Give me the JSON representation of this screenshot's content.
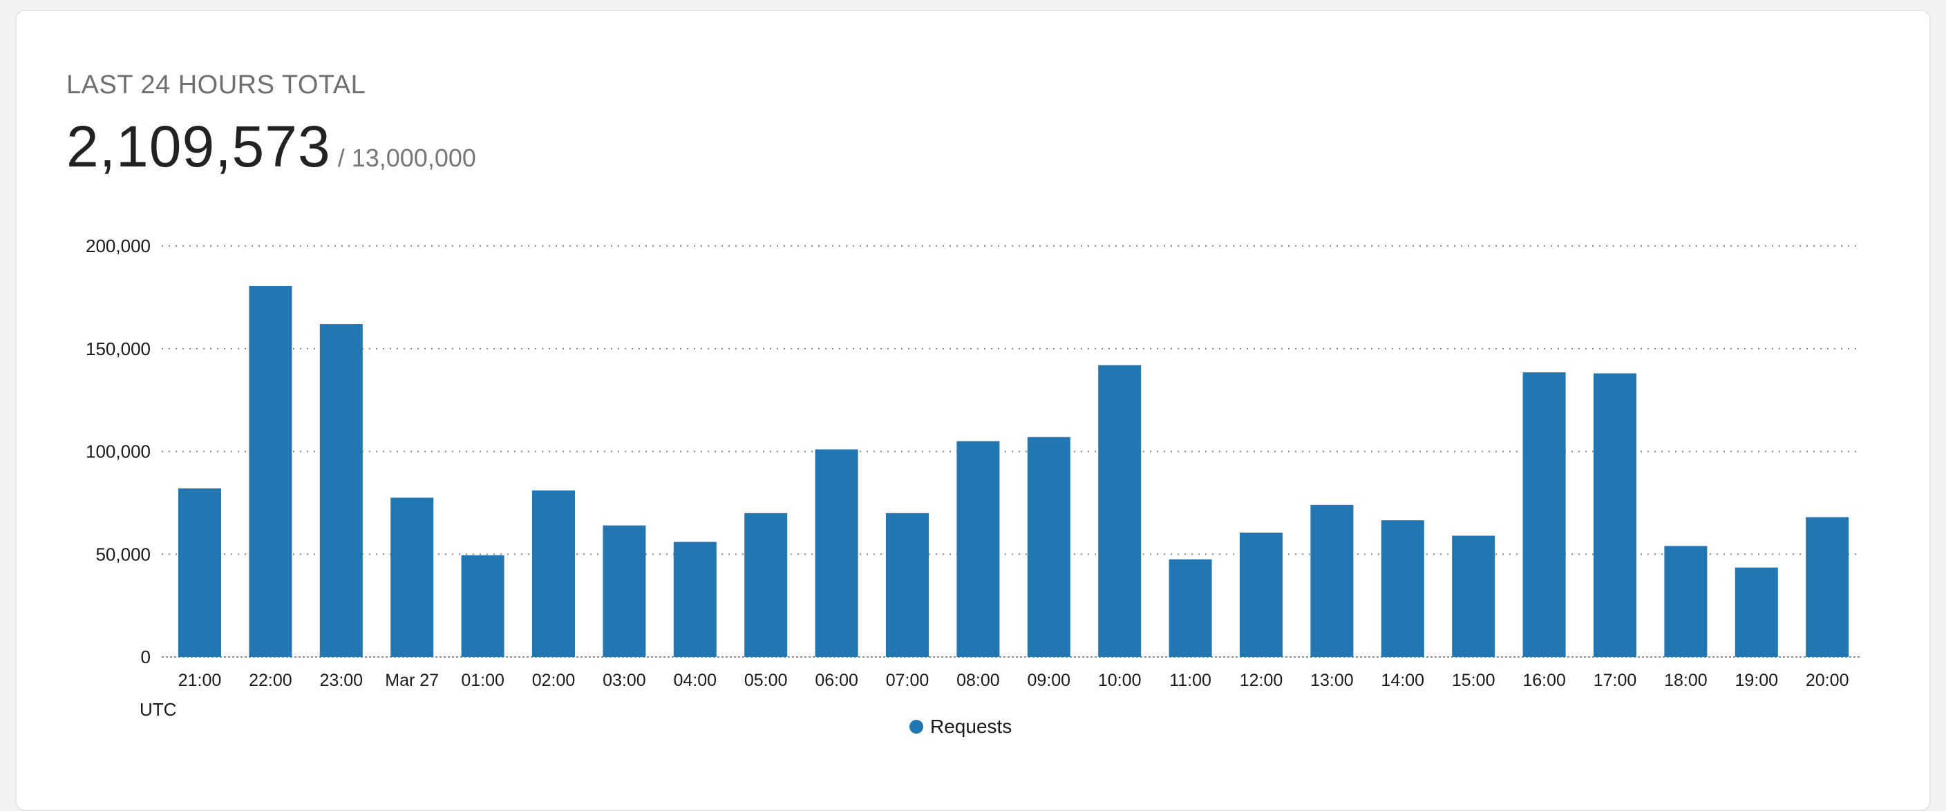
{
  "header": {
    "label": "LAST 24 HOURS TOTAL",
    "total": "2,109,573",
    "limit": "/ 13,000,000"
  },
  "colors": {
    "bar": "#2277b2",
    "grid": "#8a8a8a"
  },
  "chart_data": {
    "type": "bar",
    "title": "",
    "xlabel": "UTC",
    "ylabel": "",
    "ylim": [
      0,
      200000
    ],
    "yticks": [
      0,
      50000,
      100000,
      150000,
      200000
    ],
    "ytick_labels": [
      "0",
      "50,000",
      "100,000",
      "150,000",
      "200,000"
    ],
    "grid": true,
    "legend_position": "bottom-center",
    "categories": [
      "21:00",
      "22:00",
      "23:00",
      "Mar 27",
      "01:00",
      "02:00",
      "03:00",
      "04:00",
      "05:00",
      "06:00",
      "07:00",
      "08:00",
      "09:00",
      "10:00",
      "11:00",
      "12:00",
      "13:00",
      "14:00",
      "15:00",
      "16:00",
      "17:00",
      "18:00",
      "19:00",
      "20:00"
    ],
    "series": [
      {
        "name": "Requests",
        "values": [
          82000,
          180500,
          162000,
          77500,
          49500,
          81000,
          64000,
          56000,
          70000,
          101000,
          70000,
          105000,
          107000,
          142000,
          47500,
          60500,
          74000,
          66500,
          59000,
          138500,
          138000,
          54000,
          43500,
          68000
        ]
      }
    ]
  }
}
